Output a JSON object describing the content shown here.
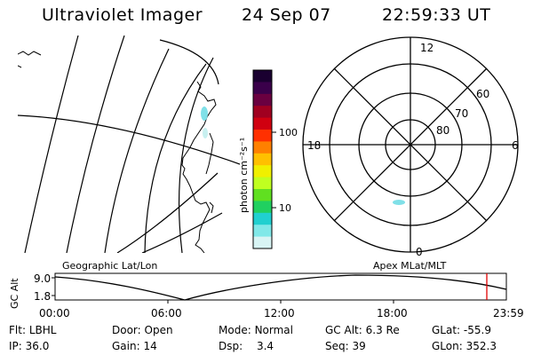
{
  "header": {
    "title": "Ultraviolet Imager",
    "date": "24 Sep 07",
    "time": "22:59:33 UT"
  },
  "map": {
    "label": "Geographic Lat/Lon"
  },
  "colorbar": {
    "unit_label": "photon cm⁻²s⁻¹",
    "ticks": [
      "100",
      "10"
    ],
    "colors": [
      "#1a0030",
      "#3a004a",
      "#6a0040",
      "#a00020",
      "#d00010",
      "#ff3000",
      "#ff8000",
      "#ffc000",
      "#f0f000",
      "#c0ff20",
      "#60e020",
      "#20d060",
      "#20d0d0",
      "#80e8e8",
      "#d8f4f4"
    ]
  },
  "polar": {
    "label": "Apex MLat/MLT",
    "mlt_labels": [
      "12",
      "18",
      "6",
      "0"
    ],
    "lat_labels": [
      "60",
      "70",
      "80"
    ]
  },
  "altitude_plot": {
    "axis_label": "GC Alt",
    "y_ticks": [
      "9.0",
      "1.8"
    ],
    "x_ticks": [
      "00:00",
      "06:00",
      "12:00",
      "18:00",
      "23:59"
    ],
    "marker_color": "#e00000"
  },
  "status": {
    "filter_label": "Flt:",
    "filter_value": "LBHL",
    "ip_label": "IP:",
    "ip_value": "36.0",
    "door_label": "Door:",
    "door_value": "Open",
    "gain_label": "Gain:",
    "gain_value": "14",
    "mode_label": "Mode:",
    "mode_value": "Normal",
    "dsp_label": "Dsp:",
    "dsp_value": "3.4",
    "gcalt_label": "GC Alt:",
    "gcalt_value": "6.3 Re",
    "seq_label": "Seq:",
    "seq_value": "39",
    "glat_label": "GLat:",
    "glat_value": "-55.9",
    "glon_label": "GLon:",
    "glon_value": "352.3"
  }
}
